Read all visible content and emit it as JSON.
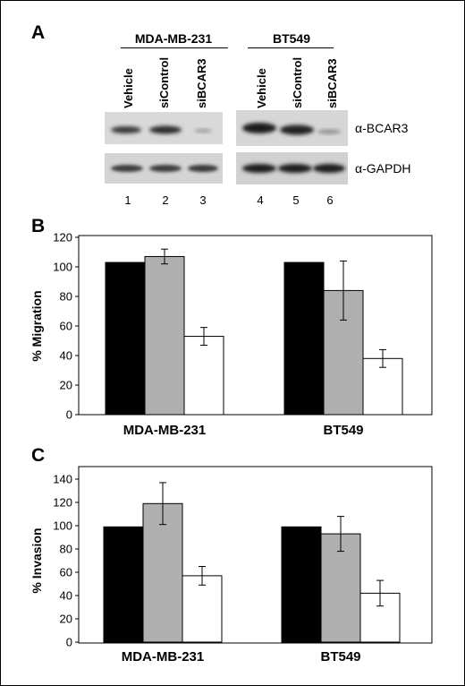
{
  "panel_a": {
    "letter": "A",
    "groups": [
      {
        "name": "MDA-MB-231",
        "lanes": [
          "Vehicle",
          "siControl",
          "siBCAR3"
        ],
        "lane_numbers": [
          "1",
          "2",
          "3"
        ]
      },
      {
        "name": "BT549",
        "lanes": [
          "Vehicle",
          "siControl",
          "siBCAR3"
        ],
        "lane_numbers": [
          "4",
          "5",
          "6"
        ]
      }
    ],
    "blot_labels": [
      "α-BCAR3",
      "α-GAPDH"
    ],
    "colors": {
      "blot_bg": "#d6d6d6",
      "band": "#2a2a2a"
    }
  },
  "chart_data": [
    {
      "panel": "B",
      "type": "bar",
      "categories": [
        "MDA-MB-231",
        "BT549"
      ],
      "series": [
        {
          "values": [
            103,
            103
          ],
          "errors": [
            0,
            0
          ],
          "color": "#000000"
        },
        {
          "values": [
            107,
            84
          ],
          "errors": [
            5,
            20
          ],
          "color": "#b0b0b0"
        },
        {
          "values": [
            53,
            38
          ],
          "errors": [
            6,
            6
          ],
          "color": "#ffffff"
        }
      ],
      "ylabel": "% Migration",
      "ylim": [
        0,
        120
      ],
      "yticks": [
        0,
        20,
        40,
        60,
        80,
        100,
        120
      ]
    },
    {
      "panel": "C",
      "type": "bar",
      "categories": [
        "MDA-MB-231",
        "BT549"
      ],
      "series": [
        {
          "values": [
            99,
            99
          ],
          "errors": [
            0,
            0
          ],
          "color": "#000000"
        },
        {
          "values": [
            119,
            93
          ],
          "errors": [
            18,
            15
          ],
          "color": "#b0b0b0"
        },
        {
          "values": [
            57,
            42
          ],
          "errors": [
            8,
            11
          ],
          "color": "#ffffff"
        }
      ],
      "ylabel": "% Invasion",
      "ylim": [
        0,
        140
      ],
      "yticks": [
        0,
        20,
        40,
        60,
        80,
        100,
        120,
        140
      ]
    }
  ]
}
